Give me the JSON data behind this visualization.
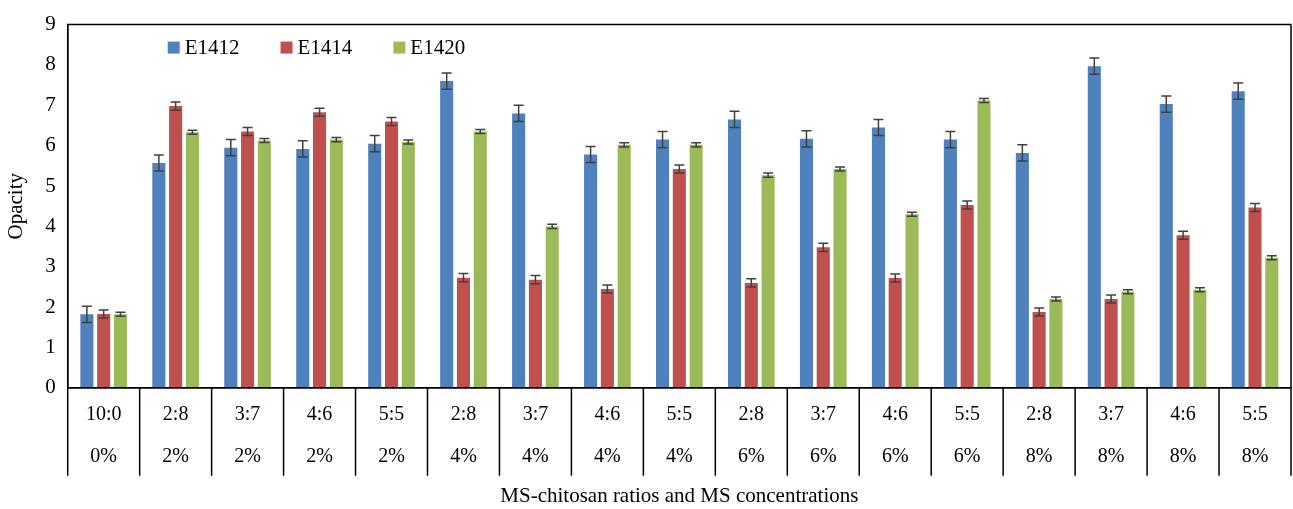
{
  "chart_data": {
    "type": "bar",
    "xlabel": "MS-chitosan ratios and MS concentrations",
    "ylabel": "Opacity",
    "categories": [
      "10:0\n0%",
      "2:8\n2%",
      "3:7\n2%",
      "4:6\n2%",
      "5:5\n2%",
      "2:8\n4%",
      "3:7\n4%",
      "4:6\n4%",
      "5:5\n4%",
      "2:8\n6%",
      "3:7\n6%",
      "4:6\n6%",
      "5:5\n6%",
      "2:8\n8%",
      "3:7\n8%",
      "4:6\n8%",
      "5:5\n8%"
    ],
    "series": [
      {
        "name": "E1412",
        "color": "#4f81bd",
        "values": [
          1.82,
          5.57,
          5.95,
          5.92,
          6.05,
          7.6,
          6.8,
          5.78,
          6.15,
          6.65,
          6.17,
          6.45,
          6.15,
          5.82,
          7.97,
          7.03,
          7.35
        ],
        "errors": [
          0.2,
          0.2,
          0.2,
          0.2,
          0.2,
          0.2,
          0.2,
          0.2,
          0.2,
          0.2,
          0.2,
          0.2,
          0.2,
          0.2,
          0.2,
          0.2,
          0.2
        ]
      },
      {
        "name": "E1414",
        "color": "#c0504d",
        "values": [
          1.83,
          6.98,
          6.35,
          6.83,
          6.6,
          2.73,
          2.68,
          2.45,
          5.42,
          2.6,
          3.48,
          2.72,
          4.53,
          1.88,
          2.2,
          3.78,
          4.47
        ],
        "errors": [
          0.1,
          0.1,
          0.1,
          0.1,
          0.1,
          0.1,
          0.1,
          0.1,
          0.1,
          0.1,
          0.1,
          0.1,
          0.1,
          0.1,
          0.1,
          0.1,
          0.1
        ]
      },
      {
        "name": "E1420",
        "color": "#9bbb59",
        "values": [
          1.82,
          6.33,
          6.13,
          6.15,
          6.09,
          6.35,
          4.0,
          6.02,
          6.02,
          5.27,
          5.42,
          4.3,
          7.12,
          2.2,
          2.38,
          2.43,
          3.22
        ],
        "errors": [
          0.05,
          0.05,
          0.05,
          0.05,
          0.05,
          0.05,
          0.05,
          0.05,
          0.05,
          0.05,
          0.05,
          0.05,
          0.05,
          0.05,
          0.05,
          0.05,
          0.05
        ]
      }
    ],
    "ylim": [
      0,
      9
    ],
    "yticks": [
      0,
      1,
      2,
      3,
      4,
      5,
      6,
      7,
      8,
      9
    ],
    "legend": "top left"
  }
}
